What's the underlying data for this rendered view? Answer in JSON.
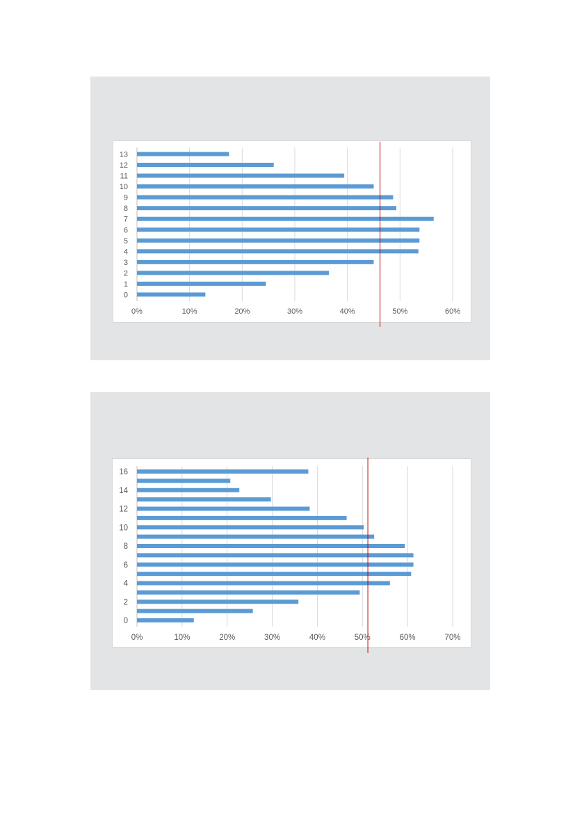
{
  "chart_data": [
    {
      "type": "bar",
      "orientation": "horizontal",
      "categories": [
        "0",
        "1",
        "2",
        "3",
        "4",
        "5",
        "6",
        "7",
        "8",
        "9",
        "10",
        "11",
        "12",
        "13"
      ],
      "values": [
        0.13,
        0.245,
        0.365,
        0.45,
        0.535,
        0.537,
        0.537,
        0.564,
        0.493,
        0.487,
        0.45,
        0.394,
        0.26,
        0.175
      ],
      "xlim": [
        0,
        0.6
      ],
      "xticks": [
        0,
        0.1,
        0.2,
        0.3,
        0.4,
        0.5,
        0.6
      ],
      "xtick_labels": [
        "0%",
        "10%",
        "20%",
        "30%",
        "40%",
        "50%",
        "60%"
      ],
      "ytick_labels": [
        "0",
        "1",
        "2",
        "3",
        "4",
        "5",
        "6",
        "7",
        "8",
        "9",
        "10",
        "11",
        "12",
        "13"
      ],
      "grid": "vertical",
      "legend": "none",
      "reference_line": 0.462,
      "bar_color": "#5b9bd5",
      "reference_line_color": "#c00000"
    },
    {
      "type": "bar",
      "orientation": "horizontal",
      "categories": [
        "0",
        "1",
        "2",
        "3",
        "4",
        "5",
        "6",
        "7",
        "8",
        "9",
        "10",
        "11",
        "12",
        "13",
        "14",
        "15",
        "16"
      ],
      "values": [
        0.126,
        0.257,
        0.358,
        0.494,
        0.561,
        0.608,
        0.613,
        0.613,
        0.594,
        0.526,
        0.503,
        0.465,
        0.383,
        0.297,
        0.227,
        0.207,
        0.38
      ],
      "xlim": [
        0,
        0.7
      ],
      "xticks": [
        0,
        0.1,
        0.2,
        0.3,
        0.4,
        0.5,
        0.6,
        0.7
      ],
      "xtick_labels": [
        "0%",
        "10%",
        "20%",
        "30%",
        "40%",
        "50%",
        "60%",
        "70%"
      ],
      "ytick_labels": [
        "0",
        "",
        "2",
        "",
        "4",
        "",
        "6",
        "",
        "8",
        "",
        "10",
        "",
        "12",
        "",
        "14",
        "",
        "16"
      ],
      "grid": "vertical",
      "legend": "none",
      "reference_line": 0.512,
      "bar_color": "#5b9bd5",
      "reference_line_color": "#c00000"
    }
  ]
}
